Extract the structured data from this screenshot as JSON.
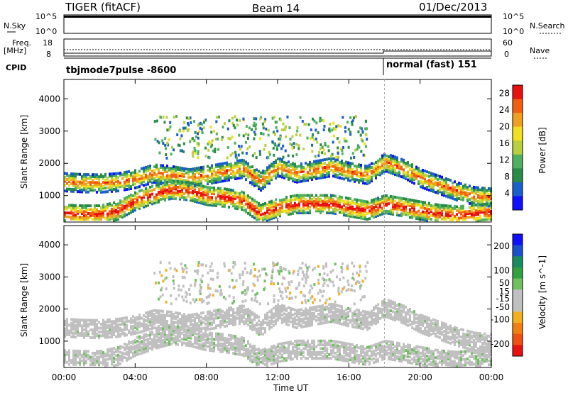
{
  "header": {
    "title": "TIGER (fitACF)",
    "beam": "Beam 14",
    "date": "01/Dec/2013"
  },
  "status_strip": {
    "nsky_label": "N.Sky",
    "nsearch_label": "N.Search",
    "freq_label": "Freq.",
    "freq_unit": "[MHz]",
    "nave_label": "Nave",
    "cpid_label": "CPID",
    "left_ticks": [
      "10^5",
      "10^0"
    ],
    "right_ticks": [
      "10^5",
      "10^0"
    ],
    "freq_ticks": [
      "18",
      "8"
    ],
    "nave_ticks": [
      "60",
      "0"
    ],
    "modes": [
      {
        "name": "tbjmode7pulse -8600",
        "start_hour": 0
      },
      {
        "name": "normal (fast) 151",
        "start_hour": 18
      }
    ]
  },
  "chart_data": [
    {
      "type": "heatmap",
      "title": "",
      "xlabel": "Time UT",
      "ylabel": "Slant Range [km]",
      "x_ticks": [
        "00:00",
        "04:00",
        "08:00",
        "12:00",
        "16:00",
        "20:00",
        "00:00"
      ],
      "xlim_hours": [
        0,
        24
      ],
      "ylim": [
        180,
        4600
      ],
      "y_ticks": [
        1000,
        2000,
        3000,
        4000
      ],
      "colorbar": {
        "label": "Power [dB]",
        "range": [
          0,
          30
        ],
        "ticks": [
          4,
          8,
          12,
          16,
          20,
          24,
          28
        ],
        "colors": [
          "#1010ff",
          "#1a5fcc",
          "#2a8a4a",
          "#50b060",
          "#b8d040",
          "#f0e020",
          "#f0a020",
          "#f06010",
          "#e81010"
        ]
      },
      "echo_bands": [
        {
          "from_h": 0,
          "to_h": 24,
          "center_km": [
            1380,
            1350,
            1340,
            1380,
            1480,
            1650,
            1600,
            1500,
            1600,
            1700,
            1800,
            1400,
            1850,
            1650,
            1750,
            1850,
            1700,
            1600,
            2000,
            1800,
            1500,
            1300,
            1100,
            950,
            900
          ],
          "width_km": 280,
          "level": 18
        },
        {
          "from_h": 0,
          "to_h": 24,
          "center_km": [
            400,
            380,
            380,
            500,
            800,
            1000,
            1150,
            1100,
            950,
            900,
            800,
            400,
            600,
            700,
            700,
            700,
            600,
            500,
            700,
            600,
            500,
            400,
            350,
            400,
            450
          ],
          "width_km": 280,
          "level": 22
        }
      ]
    },
    {
      "type": "heatmap",
      "title": "",
      "xlabel": "Time UT",
      "ylabel": "Slant Range [km]",
      "x_ticks": [
        "00:00",
        "04:00",
        "08:00",
        "12:00",
        "16:00",
        "20:00",
        "00:00"
      ],
      "xlim_hours": [
        0,
        24
      ],
      "ylim": [
        180,
        4600
      ],
      "y_ticks": [
        1000,
        2000,
        3000,
        4000
      ],
      "colorbar": {
        "label": "Velocity [m s^-1]",
        "range": [
          -250,
          250
        ],
        "ticks": [
          200,
          100,
          50,
          15,
          -15,
          -50,
          -100,
          -200
        ],
        "colors": [
          "#e81010",
          "#f05010",
          "#f08010",
          "#f0b020",
          "#c0c0c0",
          "#c0c0c0",
          "#70c060",
          "#30a040",
          "#1a8a60",
          "#1a50cc",
          "#1010ff"
        ]
      },
      "echo_bands": [
        {
          "from_h": 0,
          "to_h": 24,
          "center_km": [
            1380,
            1350,
            1340,
            1380,
            1480,
            1650,
            1600,
            1500,
            1600,
            1700,
            1800,
            1400,
            1850,
            1650,
            1750,
            1850,
            1700,
            1600,
            2000,
            1800,
            1500,
            1300,
            1100,
            950,
            900
          ],
          "width_km": 280,
          "level": -10
        },
        {
          "from_h": 0,
          "to_h": 24,
          "center_km": [
            400,
            380,
            380,
            500,
            800,
            1000,
            1150,
            1100,
            950,
            900,
            800,
            400,
            600,
            700,
            700,
            700,
            600,
            500,
            700,
            600,
            500,
            400,
            350,
            400,
            450
          ],
          "width_km": 280,
          "level": -5
        }
      ]
    }
  ]
}
